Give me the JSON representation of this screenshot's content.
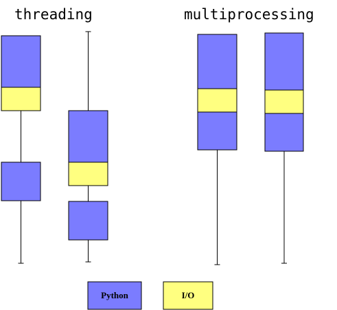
{
  "titles": {
    "threading": "threading",
    "multiprocessing": "multiprocessing"
  },
  "colors": {
    "python": "#7b7cff",
    "io": "#ffff80",
    "line": "#000000"
  },
  "legend": {
    "python": "Python",
    "io": "I/O"
  },
  "diagram_data": {
    "columns": [
      {
        "group": "threading",
        "segments": [
          {
            "kind": "python"
          },
          {
            "kind": "io"
          },
          {
            "kind": "wait"
          },
          {
            "kind": "python"
          },
          {
            "kind": "wait"
          }
        ]
      },
      {
        "group": "threading",
        "segments": [
          {
            "kind": "wait"
          },
          {
            "kind": "python"
          },
          {
            "kind": "io"
          },
          {
            "kind": "wait"
          },
          {
            "kind": "python"
          },
          {
            "kind": "wait"
          }
        ]
      },
      {
        "group": "multiprocessing",
        "segments": [
          {
            "kind": "python"
          },
          {
            "kind": "io"
          },
          {
            "kind": "python"
          },
          {
            "kind": "wait"
          }
        ]
      },
      {
        "group": "multiprocessing",
        "segments": [
          {
            "kind": "python"
          },
          {
            "kind": "io"
          },
          {
            "kind": "python"
          },
          {
            "kind": "wait"
          }
        ]
      }
    ]
  }
}
